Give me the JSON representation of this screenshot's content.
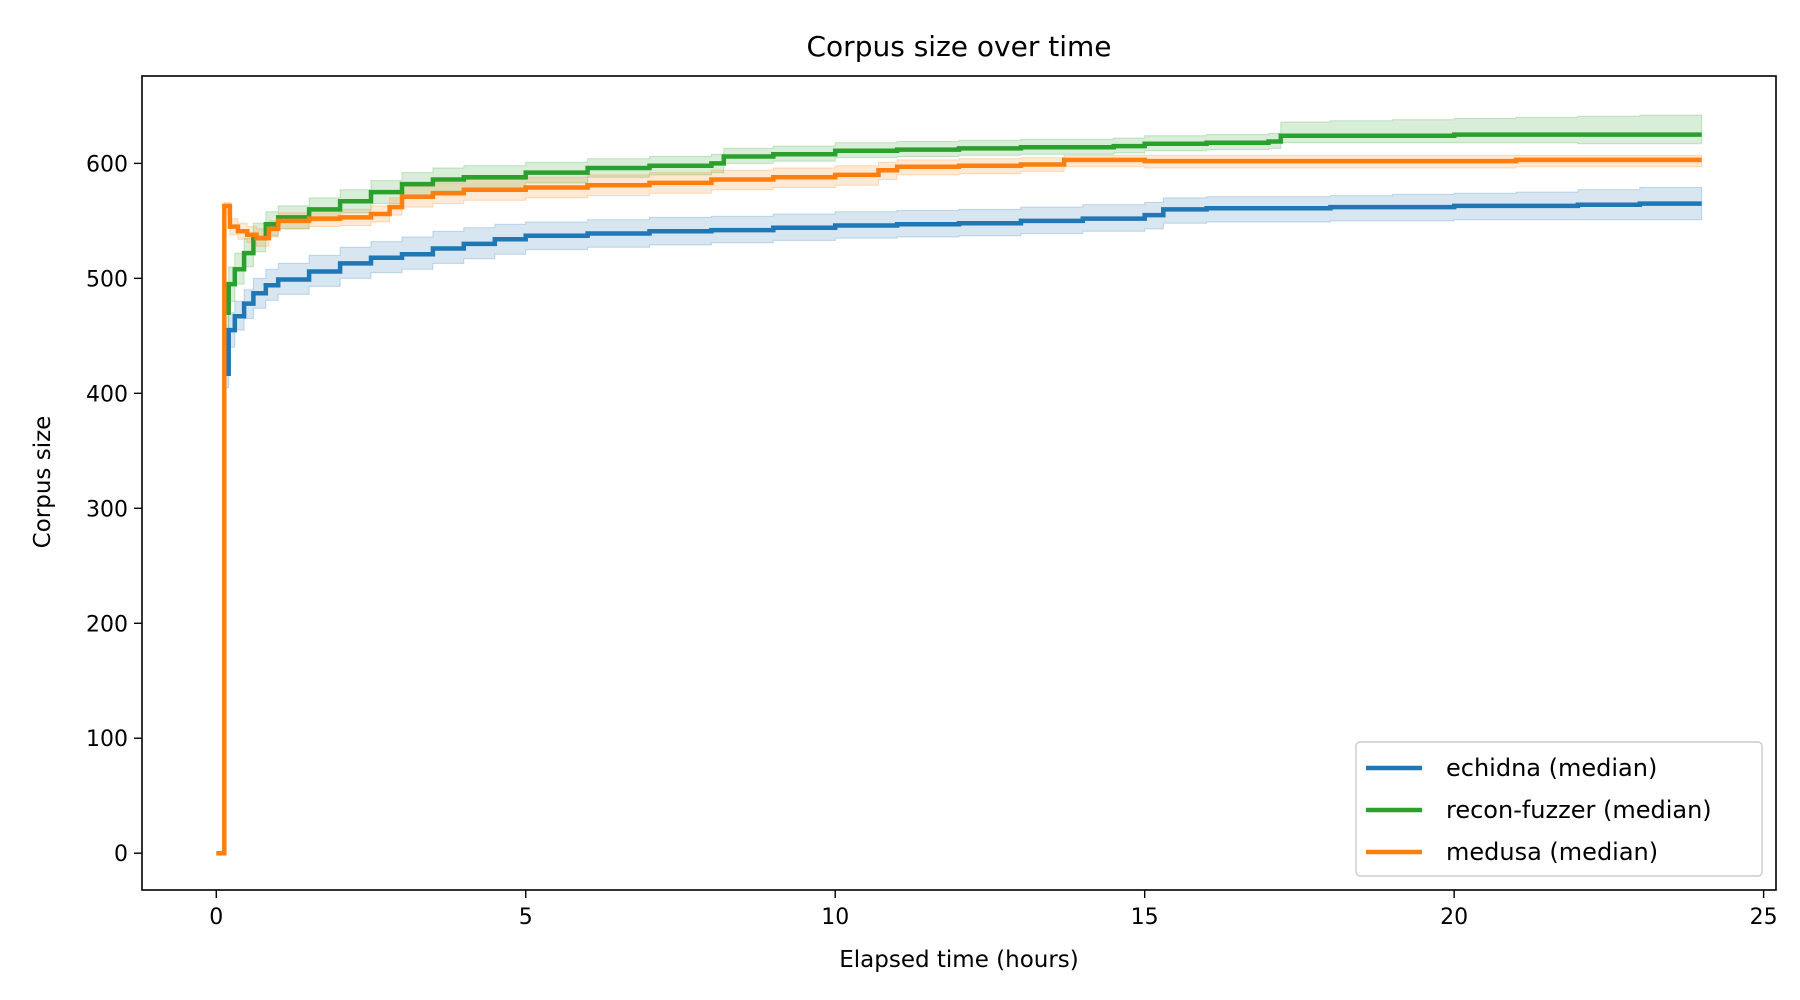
{
  "chart_data": {
    "type": "line",
    "title": "Corpus size over time",
    "xlabel": "Elapsed time (hours)",
    "ylabel": "Corpus size",
    "xlim": [
      -1.2,
      25.2
    ],
    "ylim": [
      -32,
      676
    ],
    "xticks": [
      0,
      5,
      10,
      15,
      20,
      25
    ],
    "yticks": [
      0,
      100,
      200,
      300,
      400,
      500,
      600
    ],
    "grid": false,
    "legend_position": "lower-right",
    "series": [
      {
        "name": "echidna (median)",
        "color": "#1f77b4",
        "band_color": "#1f77b4",
        "x": [
          0.15,
          0.2,
          0.3,
          0.45,
          0.6,
          0.8,
          1.0,
          1.5,
          2.0,
          2.5,
          3.0,
          3.5,
          4.0,
          4.5,
          5.0,
          6.0,
          7.0,
          8.0,
          9.0,
          10.0,
          11.0,
          12.0,
          13.0,
          14.0,
          15.0,
          15.3,
          16.0,
          17.0,
          18.0,
          19.0,
          20.0,
          21.0,
          22.0,
          23.0,
          24.0
        ],
        "y": [
          417,
          455,
          467,
          478,
          487,
          494,
          499,
          506,
          513,
          518,
          521,
          526,
          530,
          534,
          537,
          539,
          541,
          542,
          544,
          546,
          547,
          548,
          550,
          552,
          555,
          560,
          561,
          561,
          562,
          562,
          563,
          563,
          564,
          565,
          565
        ],
        "upper": [
          430,
          470,
          480,
          490,
          500,
          508,
          513,
          520,
          527,
          532,
          536,
          541,
          544,
          547,
          549,
          551,
          553,
          554,
          556,
          558,
          559,
          560,
          562,
          564,
          566,
          570,
          571,
          571,
          572,
          573,
          574,
          575,
          577,
          579,
          580
        ],
        "lower": [
          405,
          440,
          455,
          465,
          474,
          481,
          486,
          493,
          500,
          505,
          508,
          513,
          517,
          521,
          525,
          527,
          529,
          531,
          533,
          535,
          536,
          537,
          539,
          541,
          543,
          548,
          549,
          549,
          550,
          550,
          551,
          551,
          551,
          551,
          551
        ]
      },
      {
        "name": "recon-fuzzer (median)",
        "color": "#2ca02c",
        "band_color": "#2ca02c",
        "x": [
          0.15,
          0.2,
          0.3,
          0.45,
          0.6,
          0.8,
          1.0,
          1.5,
          2.0,
          2.5,
          3.0,
          3.5,
          4.0,
          5.0,
          6.0,
          7.0,
          8.0,
          8.2,
          9.0,
          10.0,
          11.0,
          12.0,
          13.0,
          14.0,
          14.5,
          15.0,
          16.0,
          17.0,
          17.2,
          18.0,
          19.0,
          20.0,
          21.0,
          22.0,
          23.0,
          24.0
        ],
        "y": [
          470,
          495,
          508,
          522,
          535,
          547,
          553,
          560,
          567,
          575,
          582,
          586,
          588,
          592,
          596,
          598,
          600,
          606,
          608,
          611,
          612,
          613,
          614,
          614,
          615,
          617,
          618,
          619,
          624,
          624,
          624,
          625,
          625,
          625,
          625,
          625
        ],
        "upper": [
          485,
          510,
          522,
          535,
          548,
          558,
          563,
          570,
          577,
          585,
          592,
          596,
          598,
          601,
          604,
          606,
          608,
          613,
          615,
          618,
          619,
          620,
          621,
          621,
          622,
          624,
          625,
          626,
          636,
          637,
          638,
          639,
          640,
          641,
          642,
          643
        ],
        "lower": [
          455,
          480,
          495,
          510,
          523,
          537,
          543,
          550,
          557,
          565,
          572,
          576,
          578,
          583,
          588,
          590,
          592,
          600,
          602,
          605,
          606,
          607,
          608,
          608,
          609,
          611,
          612,
          613,
          618,
          618,
          618,
          618,
          618,
          617,
          617,
          617
        ]
      },
      {
        "name": "medusa (median)",
        "color": "#ff7f0e",
        "band_color": "#ff7f0e",
        "x": [
          0.0,
          0.12,
          0.13,
          0.15,
          0.22,
          0.35,
          0.5,
          0.65,
          0.85,
          1.0,
          1.5,
          2.0,
          2.5,
          2.8,
          3.0,
          3.5,
          4.0,
          5.0,
          6.0,
          7.0,
          8.0,
          9.0,
          10.0,
          10.7,
          11.0,
          12.0,
          13.0,
          13.7,
          14.0,
          15.0,
          16.0,
          17.0,
          18.0,
          19.0,
          20.0,
          21.0,
          22.0,
          23.0,
          24.0
        ],
        "y": [
          0,
          0,
          563,
          563,
          545,
          541,
          538,
          535,
          543,
          550,
          552,
          553,
          556,
          562,
          571,
          574,
          577,
          579,
          581,
          583,
          586,
          588,
          590,
          594,
          597,
          598,
          599,
          603,
          603,
          602,
          602,
          602,
          602,
          602,
          602,
          603,
          603,
          603,
          603
        ],
        "upper": [
          0,
          0,
          566,
          566,
          552,
          548,
          545,
          543,
          550,
          557,
          559,
          560,
          563,
          570,
          580,
          583,
          586,
          588,
          590,
          592,
          594,
          596,
          598,
          601,
          603,
          604,
          605,
          607,
          607,
          607,
          607,
          607,
          607,
          607,
          607,
          607,
          607,
          607,
          607
        ],
        "lower": [
          0,
          0,
          556,
          556,
          538,
          534,
          531,
          528,
          536,
          543,
          545,
          546,
          549,
          555,
          562,
          565,
          568,
          570,
          572,
          574,
          577,
          579,
          581,
          586,
          590,
          591,
          593,
          597,
          597,
          596,
          596,
          596,
          596,
          596,
          596,
          597,
          597,
          597,
          597
        ]
      }
    ]
  }
}
